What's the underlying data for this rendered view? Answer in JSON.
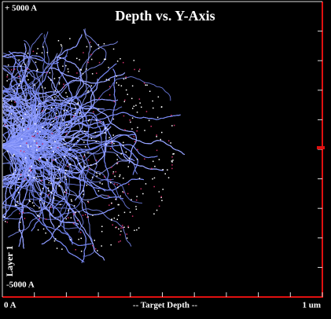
{
  "title": "Depth vs. Y-Axis",
  "y_axis": {
    "top_label": "+ 5000 A",
    "bottom_label": "-5000 A"
  },
  "x_axis": {
    "left_label": "0 A",
    "center_label": "-- Target Depth --",
    "right_label": "1 um"
  },
  "layer_label": "Layer 1"
}
